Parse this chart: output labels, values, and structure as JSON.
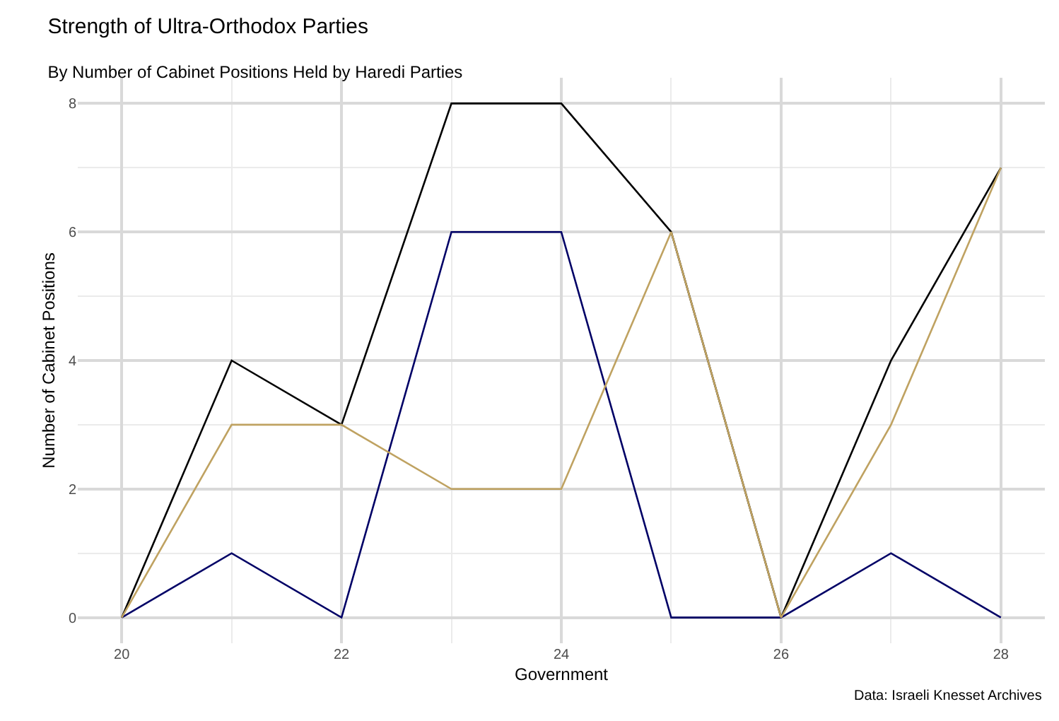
{
  "chart_data": {
    "type": "line",
    "title": "Strength of Ultra-Orthodox Parties",
    "subtitle": "By Number of Cabinet Positions Held by Haredi Parties",
    "xlabel": "Government",
    "ylabel": "Number of Cabinet Positions",
    "annotations": [
      "Data: Israeli Knesset Archives"
    ],
    "x": [
      20,
      21,
      22,
      23,
      24,
      25,
      26,
      27,
      28
    ],
    "series": [
      {
        "color": "#000000",
        "values": [
          0,
          4,
          3,
          8,
          8,
          6,
          0,
          4,
          7
        ]
      },
      {
        "color": "#000066",
        "values": [
          0,
          1,
          0,
          6,
          6,
          0,
          0,
          1,
          0
        ]
      },
      {
        "color": "#bfa261",
        "values": [
          0,
          3,
          3,
          2,
          2,
          6,
          0,
          3,
          7
        ]
      }
    ],
    "xlim": [
      19.6,
      28.4
    ],
    "xticks": [
      20,
      22,
      24,
      26,
      28
    ],
    "ylim": [
      -0.4,
      8.4
    ],
    "yticks": [
      0,
      2,
      4,
      6,
      8
    ],
    "grid": true,
    "marker": "none",
    "line_style": "solid"
  }
}
